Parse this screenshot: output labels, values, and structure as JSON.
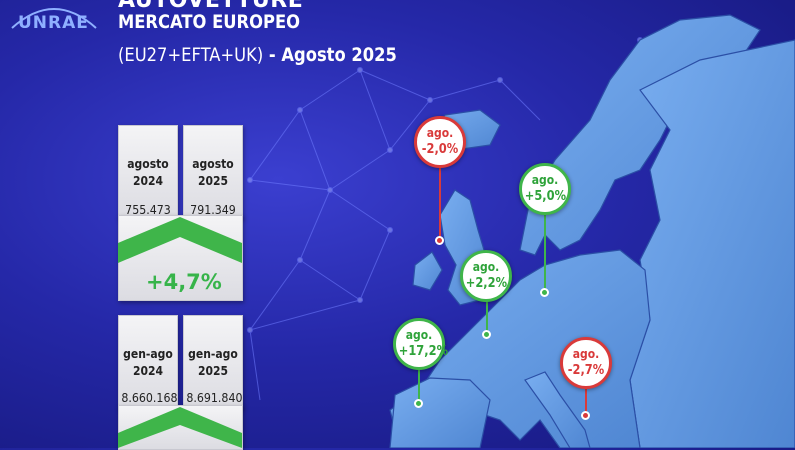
{
  "header": {
    "logo_text": "UNRAE",
    "headline": "AUTOVETTURE",
    "subtitle": "MERCATO EUROPEO",
    "period_prefix": "(EU27+EFTA+UK)",
    "period_suffix": " - Agosto 2025"
  },
  "monthly": {
    "left_label_line1": "agosto",
    "left_label_line2": "2024",
    "left_value": "755.473",
    "right_label_line1": "agosto",
    "right_label_line2": "2025",
    "right_value": "791.349",
    "growth": "+4,7%"
  },
  "ytd": {
    "left_label_line1": "gen-ago",
    "left_label_line2": "2024",
    "left_value": "8.660.168",
    "right_label_line1": "gen-ago",
    "right_label_line2": "2025",
    "right_value": "8.691.840"
  },
  "callouts": [
    {
      "label": "ago.",
      "value": "-2,0%",
      "status": "negative"
    },
    {
      "label": "ago.",
      "value": "+5,0%",
      "status": "positive"
    },
    {
      "label": "ago.",
      "value": "+2,2%",
      "status": "positive"
    },
    {
      "label": "ago.",
      "value": "+17,2%",
      "status": "positive"
    },
    {
      "label": "ago.",
      "value": "-2,7%",
      "status": "negative"
    }
  ],
  "colors": {
    "background": "#2528a8",
    "map": "#5b93dc",
    "positive": "#3fb54a",
    "negative": "#d93a3a"
  }
}
